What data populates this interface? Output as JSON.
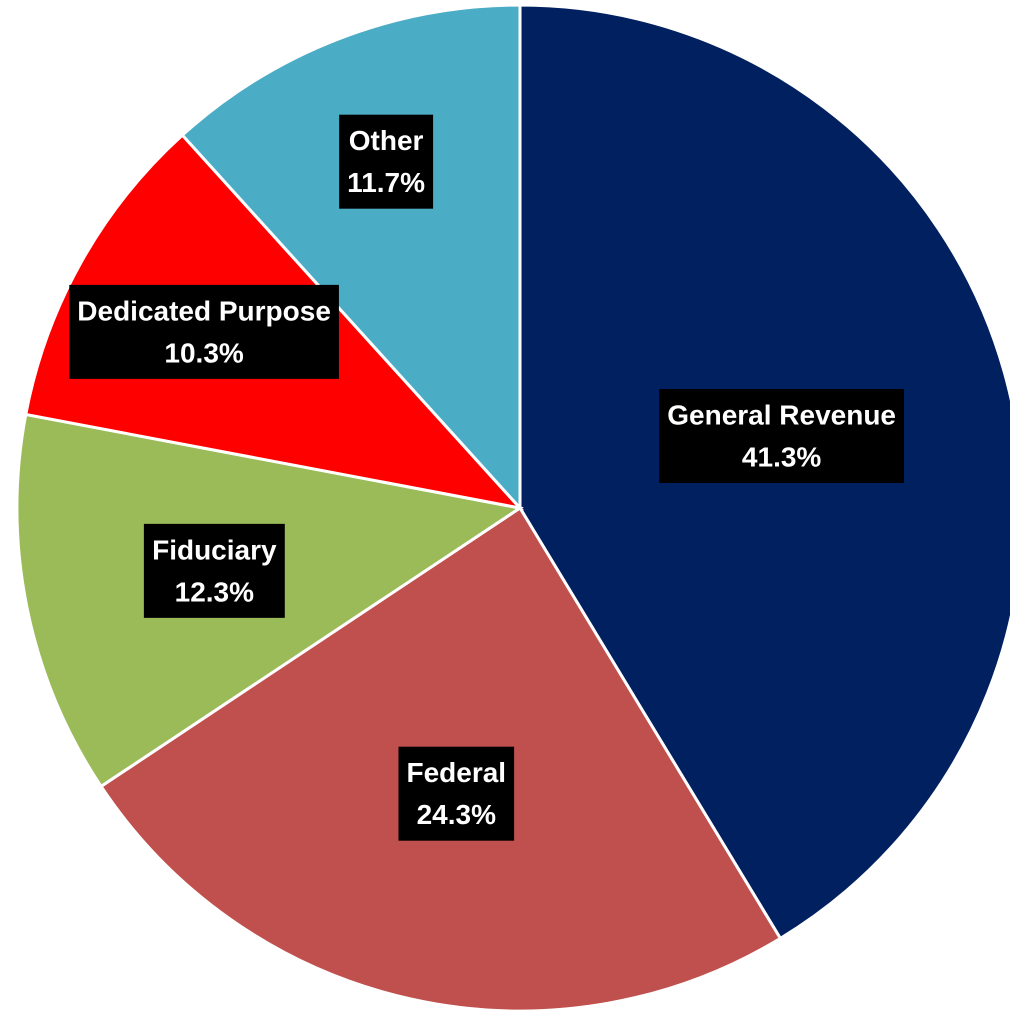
{
  "chart_data": {
    "type": "pie",
    "categories": [
      "General Revenue",
      "Federal",
      "Fiduciary",
      "Dedicated Purpose",
      "Other"
    ],
    "values": [
      41.3,
      24.3,
      12.3,
      10.3,
      11.7
    ],
    "value_labels": [
      "41.3%",
      "24.3%",
      "12.3%",
      "10.3%",
      "11.7%"
    ],
    "colors": [
      "#002060",
      "#c0504d",
      "#9bbb59",
      "#ff0000",
      "#4bacc6"
    ]
  }
}
